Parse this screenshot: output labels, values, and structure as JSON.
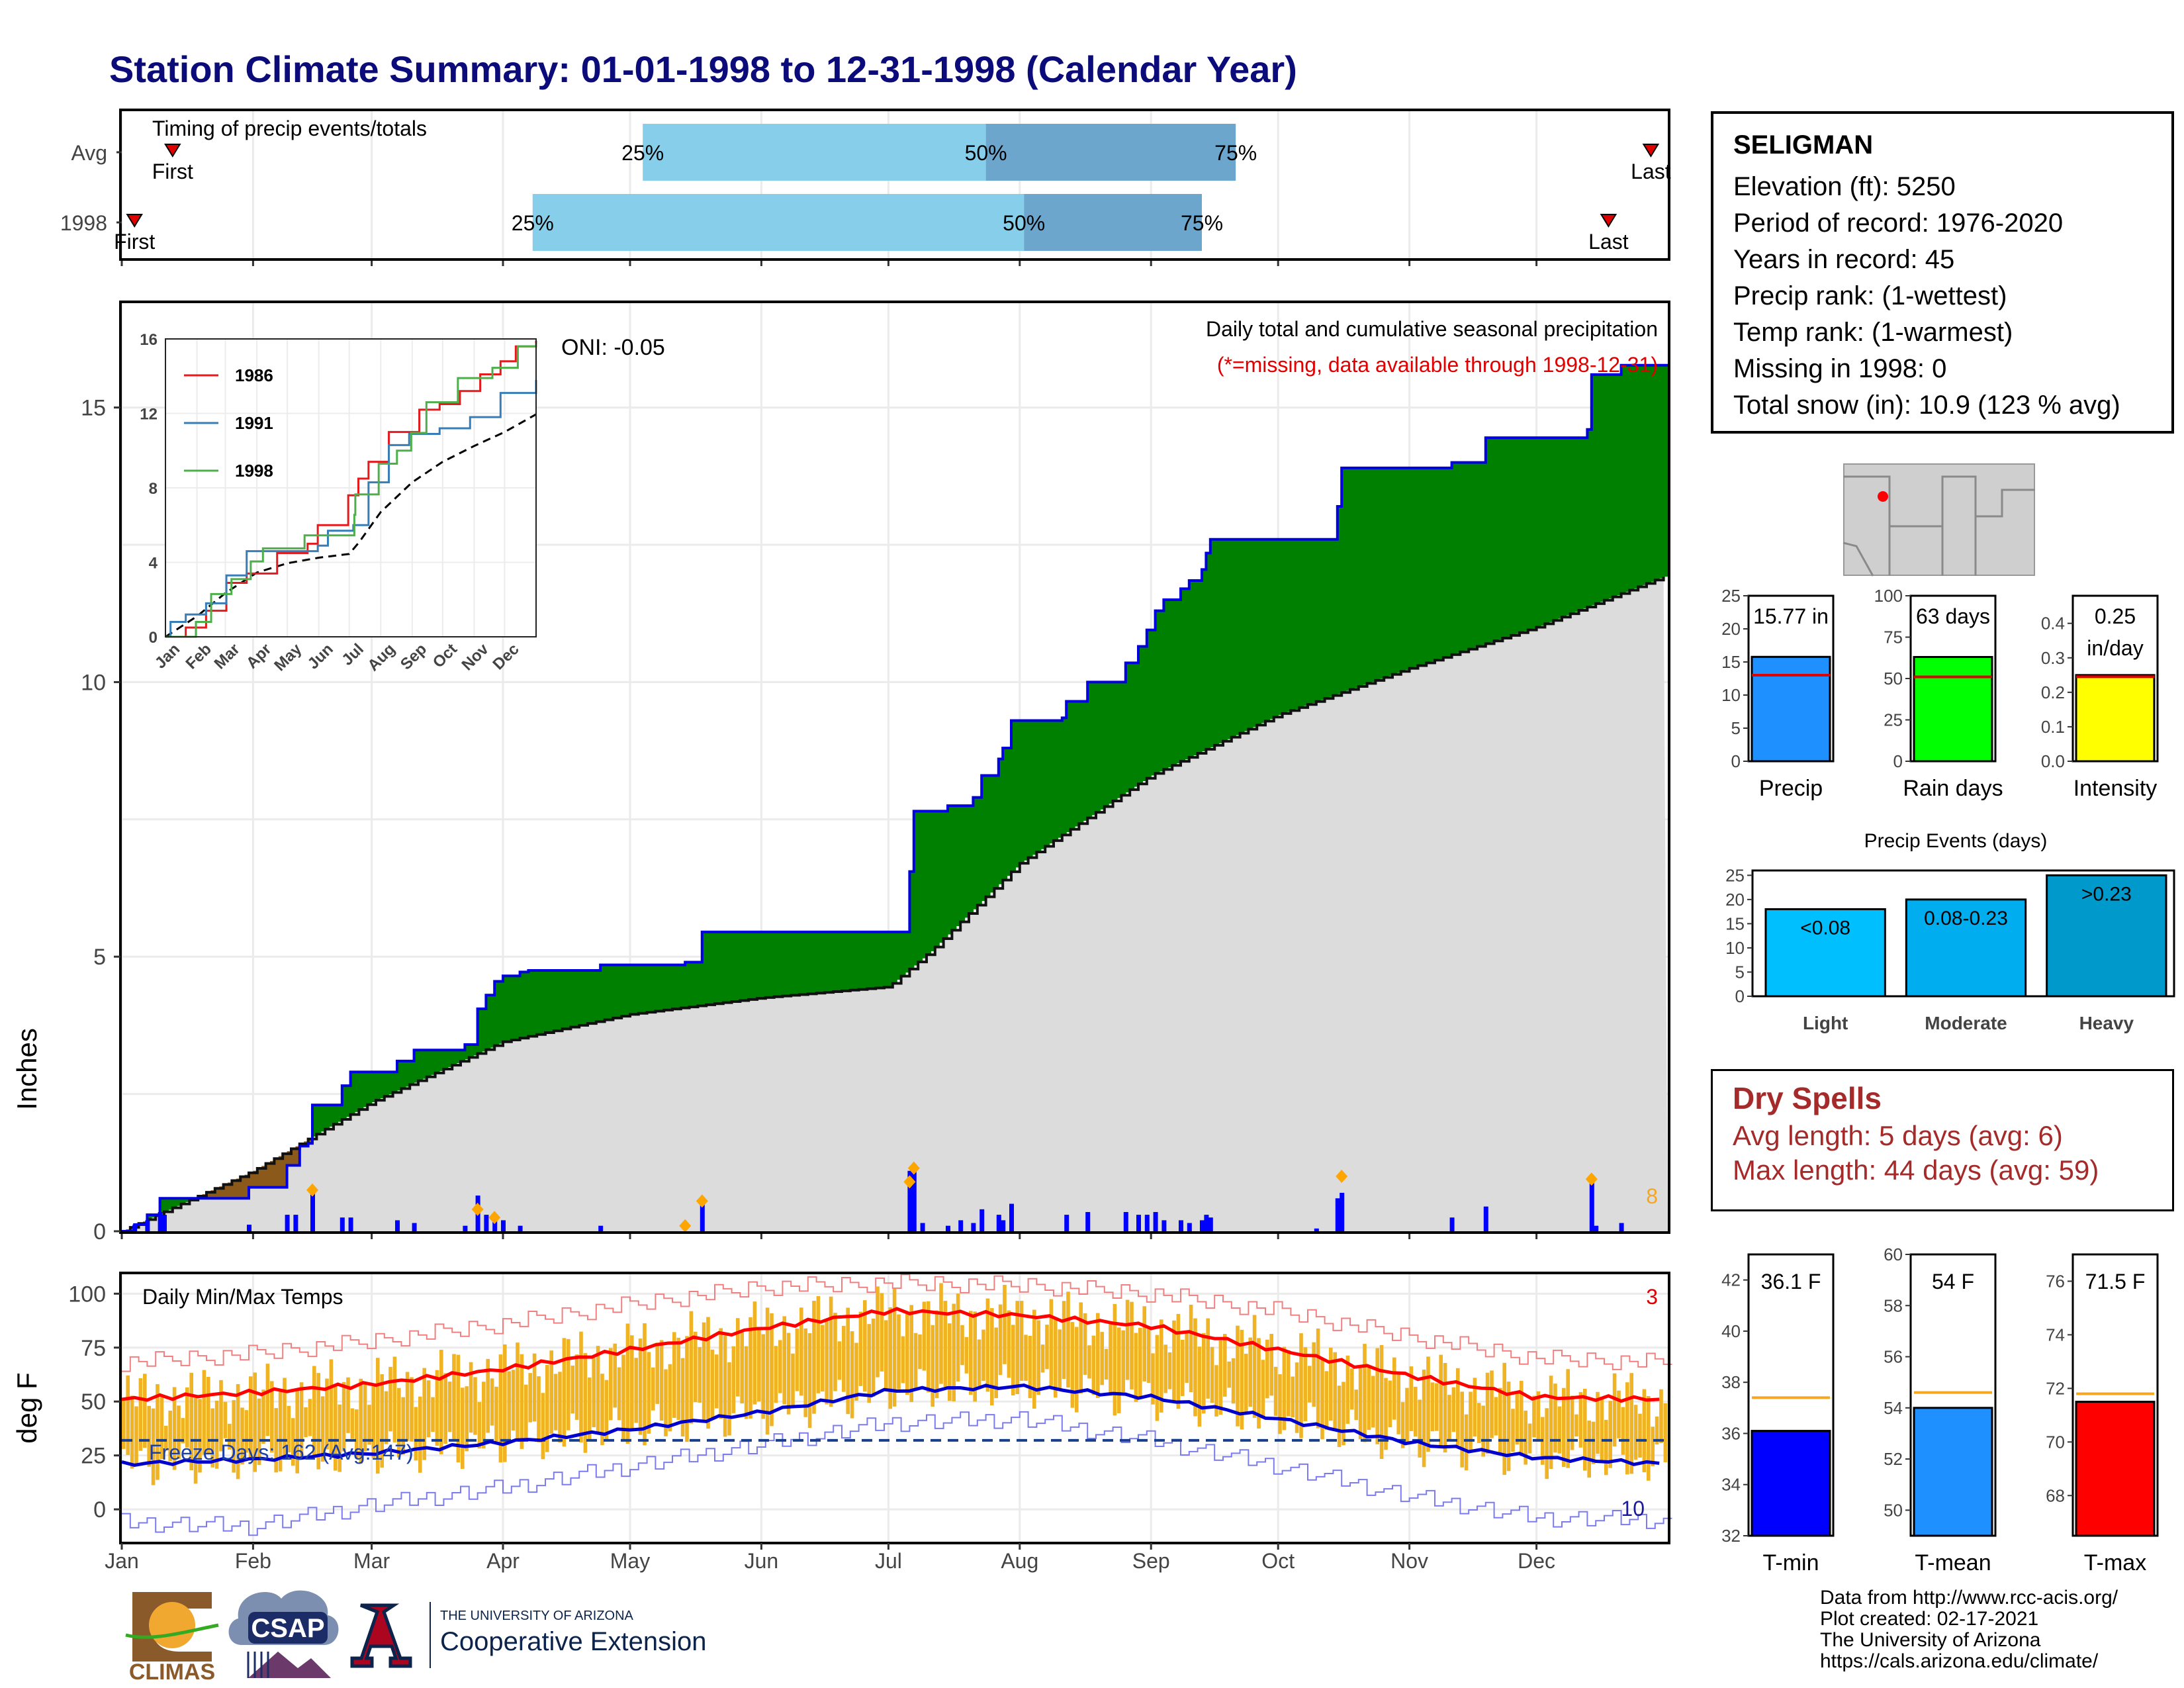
{
  "title": "Station Climate Summary: 01-01-1998 to 12-31-1998 (Calendar Year)",
  "months": [
    "Jan",
    "Feb",
    "Mar",
    "Apr",
    "May",
    "Jun",
    "Jul",
    "Aug",
    "Sep",
    "Oct",
    "Nov",
    "Dec"
  ],
  "timing": {
    "label": "Timing of precip events/totals",
    "rows": [
      {
        "name": "Avg",
        "first_day": 12,
        "p25": 123,
        "p50": 204,
        "p75": 263,
        "last_day": 361,
        "first_label": "First",
        "last_label": "Last",
        "p25_label": "25%",
        "p50_label": "50%",
        "p75_label": "75%"
      },
      {
        "name": "1998",
        "first_day": 3,
        "p25": 97,
        "p50": 213,
        "p75": 255,
        "last_day": 351,
        "first_label": "First",
        "last_label": "Last",
        "p25_label": "25%",
        "p50_label": "50%",
        "p75_label": "75%"
      }
    ]
  },
  "precip": {
    "ylabel": "Inches",
    "yticks": [
      0,
      5,
      10,
      15
    ],
    "caption": "Daily total and cumulative seasonal precipitation",
    "missing_note": "(*=missing, data available through 1998-12-31)",
    "oni": "ONI: -0.05",
    "corner_count": "8",
    "cumulative_1998": [
      [
        0,
        0
      ],
      [
        3,
        0.12
      ],
      [
        6,
        0.3
      ],
      [
        9,
        0.6
      ],
      [
        30,
        0.8
      ],
      [
        39,
        1.2
      ],
      [
        42,
        1.55
      ],
      [
        44,
        1.6
      ],
      [
        45,
        2.3
      ],
      [
        52,
        2.65
      ],
      [
        54,
        2.9
      ],
      [
        63,
        2.9
      ],
      [
        65,
        3.1
      ],
      [
        69,
        3.3
      ],
      [
        81,
        3.4
      ],
      [
        84,
        4.05
      ],
      [
        86,
        4.3
      ],
      [
        88,
        4.55
      ],
      [
        90,
        4.65
      ],
      [
        93,
        4.65
      ],
      [
        94,
        4.72
      ],
      [
        96,
        4.75
      ],
      [
        112,
        4.75
      ],
      [
        113,
        4.85
      ],
      [
        133,
        4.9
      ],
      [
        137,
        5.45
      ],
      [
        185,
        5.45
      ],
      [
        186,
        6.55
      ],
      [
        187,
        7.65
      ],
      [
        195,
        7.75
      ],
      [
        201,
        7.9
      ],
      [
        203,
        8.3
      ],
      [
        207,
        8.6
      ],
      [
        208,
        8.8
      ],
      [
        210,
        9.3
      ],
      [
        222,
        9.35
      ],
      [
        223,
        9.65
      ],
      [
        228,
        10.0
      ],
      [
        237,
        10.35
      ],
      [
        240,
        10.65
      ],
      [
        242,
        10.95
      ],
      [
        244,
        11.3
      ],
      [
        246,
        11.5
      ],
      [
        250,
        11.7
      ],
      [
        252,
        11.85
      ],
      [
        255,
        12.05
      ],
      [
        256,
        12.35
      ],
      [
        257,
        12.6
      ],
      [
        282,
        12.6
      ],
      [
        287,
        13.2
      ],
      [
        288,
        13.9
      ],
      [
        314,
        14.0
      ],
      [
        322,
        14.45
      ],
      [
        346,
        14.6
      ],
      [
        347,
        15.6
      ],
      [
        354,
        15.77
      ],
      [
        365,
        15.77
      ]
    ],
    "cumulative_avg": [
      [
        0,
        0
      ],
      [
        31,
        1.1
      ],
      [
        59,
        2.35
      ],
      [
        90,
        3.45
      ],
      [
        120,
        3.95
      ],
      [
        151,
        4.25
      ],
      [
        181,
        4.45
      ],
      [
        191,
        5.1
      ],
      [
        212,
        6.7
      ],
      [
        243,
        8.3
      ],
      [
        273,
        9.4
      ],
      [
        304,
        10.25
      ],
      [
        334,
        11.0
      ],
      [
        365,
        11.95
      ]
    ],
    "daily_bars": [
      [
        3,
        0.12
      ],
      [
        6,
        0.2
      ],
      [
        9,
        0.35
      ],
      [
        10,
        0.3
      ],
      [
        30,
        0.12
      ],
      [
        39,
        0.3
      ],
      [
        41,
        0.3
      ],
      [
        45,
        0.7
      ],
      [
        52,
        0.25
      ],
      [
        54,
        0.25
      ],
      [
        65,
        0.2
      ],
      [
        69,
        0.15
      ],
      [
        81,
        0.1
      ],
      [
        84,
        0.65
      ],
      [
        86,
        0.3
      ],
      [
        88,
        0.25
      ],
      [
        90,
        0.2
      ],
      [
        94,
        0.1
      ],
      [
        113,
        0.1
      ],
      [
        137,
        0.55
      ],
      [
        186,
        1.1
      ],
      [
        187,
        1.1
      ],
      [
        189,
        0.15
      ],
      [
        195,
        0.1
      ],
      [
        198,
        0.2
      ],
      [
        201,
        0.15
      ],
      [
        203,
        0.4
      ],
      [
        207,
        0.3
      ],
      [
        208,
        0.2
      ],
      [
        210,
        0.5
      ],
      [
        223,
        0.3
      ],
      [
        228,
        0.35
      ],
      [
        237,
        0.35
      ],
      [
        240,
        0.3
      ],
      [
        242,
        0.3
      ],
      [
        244,
        0.35
      ],
      [
        246,
        0.2
      ],
      [
        250,
        0.2
      ],
      [
        252,
        0.15
      ],
      [
        255,
        0.2
      ],
      [
        256,
        0.3
      ],
      [
        257,
        0.25
      ],
      [
        282,
        0.05
      ],
      [
        287,
        0.6
      ],
      [
        288,
        0.7
      ],
      [
        314,
        0.25
      ],
      [
        322,
        0.45
      ],
      [
        347,
        0.95
      ],
      [
        348,
        0.1
      ],
      [
        354,
        0.15
      ]
    ],
    "snow_markers": [
      [
        45,
        0.75
      ],
      [
        84,
        0.4
      ],
      [
        88,
        0.25
      ],
      [
        133,
        0.1
      ],
      [
        137,
        0.55
      ],
      [
        186,
        0.9
      ],
      [
        187,
        1.15
      ],
      [
        288,
        1.0
      ],
      [
        347,
        0.95
      ]
    ],
    "inset": {
      "yticks": [
        0,
        4,
        8,
        12,
        16
      ],
      "series": [
        {
          "name": "1986",
          "color": "#e41a1c",
          "points": [
            [
              0,
              0
            ],
            [
              20,
              0.5
            ],
            [
              40,
              1.4
            ],
            [
              60,
              2.9
            ],
            [
              80,
              3.4
            ],
            [
              110,
              4.5
            ],
            [
              140,
              5.0
            ],
            [
              150,
              6.0
            ],
            [
              180,
              7.6
            ],
            [
              190,
              8.5
            ],
            [
              200,
              9.4
            ],
            [
              220,
              11.0
            ],
            [
              250,
              12.2
            ],
            [
              270,
              12.5
            ],
            [
              290,
              13.2
            ],
            [
              310,
              14.1
            ],
            [
              330,
              14.8
            ],
            [
              345,
              15.6
            ],
            [
              365,
              15.9
            ]
          ]
        },
        {
          "name": "1991",
          "color": "#377eb8",
          "points": [
            [
              0,
              0
            ],
            [
              5,
              0.8
            ],
            [
              20,
              1.2
            ],
            [
              40,
              1.8
            ],
            [
              60,
              3.3
            ],
            [
              80,
              4.6
            ],
            [
              150,
              4.9
            ],
            [
              160,
              5.7
            ],
            [
              185,
              6.0
            ],
            [
              200,
              8.3
            ],
            [
              220,
              10.3
            ],
            [
              240,
              10.9
            ],
            [
              270,
              11.2
            ],
            [
              300,
              11.8
            ],
            [
              330,
              13.1
            ],
            [
              365,
              13.8
            ]
          ]
        },
        {
          "name": "1998",
          "color": "#4daf4a",
          "points": [
            [
              0,
              0
            ],
            [
              30,
              0.8
            ],
            [
              45,
              2.3
            ],
            [
              65,
              3.1
            ],
            [
              84,
              4.05
            ],
            [
              96,
              4.75
            ],
            [
              137,
              5.45
            ],
            [
              186,
              6.55
            ],
            [
              187,
              7.65
            ],
            [
              210,
              9.3
            ],
            [
              228,
              10.0
            ],
            [
              242,
              10.95
            ],
            [
              257,
              12.6
            ],
            [
              288,
              13.9
            ],
            [
              322,
              14.45
            ],
            [
              347,
              15.6
            ],
            [
              365,
              15.77
            ]
          ]
        }
      ],
      "avg_points": [
        [
          0,
          0
        ],
        [
          31,
          1.1
        ],
        [
          59,
          2.35
        ],
        [
          90,
          3.45
        ],
        [
          120,
          3.95
        ],
        [
          151,
          4.25
        ],
        [
          181,
          4.45
        ],
        [
          191,
          5.1
        ],
        [
          212,
          6.7
        ],
        [
          243,
          8.3
        ],
        [
          273,
          9.4
        ],
        [
          304,
          10.25
        ],
        [
          334,
          11.0
        ],
        [
          365,
          11.95
        ]
      ]
    }
  },
  "temps": {
    "ylabel": "deg F",
    "yticks": [
      0,
      25,
      50,
      75,
      100
    ],
    "label": "Daily Min/Max Temps",
    "freeze_label": "Freeze Days: 162 (Avg:147)",
    "corner_top": "3",
    "corner_bottom": "10",
    "freeze_line": 32,
    "avg_max": [
      [
        0,
        51
      ],
      [
        30,
        54
      ],
      [
        59,
        58
      ],
      [
        90,
        65
      ],
      [
        120,
        74
      ],
      [
        151,
        84
      ],
      [
        181,
        92
      ],
      [
        212,
        90
      ],
      [
        243,
        85
      ],
      [
        273,
        74
      ],
      [
        304,
        62
      ],
      [
        334,
        52
      ],
      [
        365,
        51
      ]
    ],
    "avg_min": [
      [
        0,
        21
      ],
      [
        30,
        23
      ],
      [
        59,
        26
      ],
      [
        90,
        31
      ],
      [
        120,
        37
      ],
      [
        151,
        45
      ],
      [
        181,
        55
      ],
      [
        212,
        57
      ],
      [
        243,
        52
      ],
      [
        273,
        42
      ],
      [
        304,
        31
      ],
      [
        334,
        24
      ],
      [
        365,
        21
      ]
    ],
    "record_max": [
      [
        0,
        68
      ],
      [
        30,
        72
      ],
      [
        59,
        78
      ],
      [
        90,
        86
      ],
      [
        120,
        95
      ],
      [
        151,
        103
      ],
      [
        181,
        105
      ],
      [
        212,
        104
      ],
      [
        243,
        100
      ],
      [
        273,
        92
      ],
      [
        304,
        80
      ],
      [
        334,
        70
      ],
      [
        365,
        68
      ]
    ],
    "record_min": [
      [
        0,
        -6
      ],
      [
        30,
        -8
      ],
      [
        59,
        2
      ],
      [
        90,
        10
      ],
      [
        120,
        20
      ],
      [
        151,
        30
      ],
      [
        181,
        40
      ],
      [
        212,
        42
      ],
      [
        243,
        32
      ],
      [
        273,
        20
      ],
      [
        304,
        6
      ],
      [
        334,
        -4
      ],
      [
        365,
        -5
      ]
    ]
  },
  "station": {
    "name": "SELIGMAN",
    "lines": [
      "Elevation (ft): 5250",
      "Period of record: 1976-2020",
      "Years in record: 45",
      "Precip rank:  (1-wettest)",
      "Temp rank:  (1-warmest)",
      "Missing in 1998: 0",
      "Total snow (in): 10.9 (123 % avg)"
    ]
  },
  "mini_bars": [
    {
      "label": "Precip",
      "value": 15.77,
      "value_text": "15.77 in",
      "avg": 13,
      "ymax": 25,
      "yticks": [
        0,
        5,
        10,
        15,
        20,
        25
      ],
      "color": "#1e90ff"
    },
    {
      "label": "Rain days",
      "value": 63,
      "value_text": "63 days",
      "avg": 51,
      "ymax": 100,
      "yticks": [
        0,
        25,
        50,
        75,
        100
      ],
      "color": "#00ff00"
    },
    {
      "label": "Intensity",
      "value": 0.25,
      "value_text": "0.25",
      "value_text2": "in/day",
      "avg": 0.245,
      "ymax": 0.48,
      "yticks": [
        0.0,
        0.1,
        0.2,
        0.3,
        0.4
      ],
      "color": "#ffff00"
    }
  ],
  "events": {
    "title": "Precip Events (days)",
    "yticks": [
      0,
      5,
      10,
      15,
      20,
      25
    ],
    "bars": [
      {
        "label": "Light",
        "range": "<0.08",
        "value": 18,
        "color": "#00bfff"
      },
      {
        "label": "Moderate",
        "range": "0.08-0.23",
        "value": 20,
        "color": "#00aeef"
      },
      {
        "label": "Heavy",
        "range": ">0.23",
        "value": 25,
        "color": "#0099cc"
      }
    ]
  },
  "dry_spells": {
    "title": "Dry Spells",
    "avg_line": "Avg length: 5 days (avg: 6)",
    "max_line": "Max length: 44 days (avg: 59)"
  },
  "temp_bars": [
    {
      "label": "T-min",
      "value": 36.1,
      "value_text": "36.1 F",
      "avg": 37.4,
      "ymin": 32,
      "ymax": 43,
      "yticks": [
        32,
        34,
        36,
        38,
        40,
        42
      ],
      "color": "#0000ff"
    },
    {
      "label": "T-mean",
      "value": 54,
      "value_text": "54 F",
      "avg": 54.6,
      "ymin": 49,
      "ymax": 60,
      "yticks": [
        50,
        52,
        54,
        56,
        58,
        60
      ],
      "color": "#1e90ff"
    },
    {
      "label": "T-max",
      "value": 71.5,
      "value_text": "71.5 F",
      "avg": 71.8,
      "ymin": 66.5,
      "ymax": 77,
      "yticks": [
        68,
        70,
        72,
        74,
        76
      ],
      "color": "#ff0000"
    }
  ],
  "footer": [
    "Data from http://www.rcc-acis.org/",
    "Plot created: 02-17-2021",
    "The University of Arizona",
    "https://cals.arizona.edu/climate/"
  ],
  "logos": {
    "climas": "CLIMAS",
    "csap": "CSAP",
    "ua_line1": "THE UNIVERSITY OF ARIZONA",
    "ua_line2": "Cooperative Extension"
  }
}
